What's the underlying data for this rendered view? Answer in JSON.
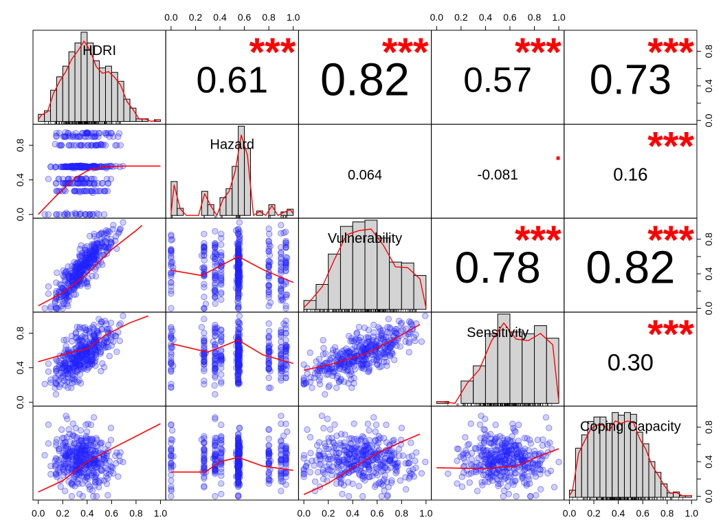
{
  "chart_data": {
    "type": "scatter-matrix",
    "variables": [
      "HDRI",
      "Hazard",
      "Vulnerability",
      "Sensitivity",
      "Coping Capacity"
    ],
    "axis_range": [
      0,
      1
    ],
    "tick_labels": [
      "0.0",
      "0.2",
      "0.4",
      "0.6",
      "0.8",
      "1.0"
    ],
    "tick_labels_hazard": [
      "0.0",
      "0.4",
      "0.8"
    ],
    "correlations": [
      {
        "row": 0,
        "col": 1,
        "value": "0.61",
        "stars": "***",
        "abs": 0.61
      },
      {
        "row": 0,
        "col": 2,
        "value": "0.82",
        "stars": "***",
        "abs": 0.82
      },
      {
        "row": 0,
        "col": 3,
        "value": "0.57",
        "stars": "***",
        "abs": 0.57
      },
      {
        "row": 0,
        "col": 4,
        "value": "0.73",
        "stars": "***",
        "abs": 0.73
      },
      {
        "row": 1,
        "col": 2,
        "value": "0.064",
        "stars": "",
        "abs": 0.064
      },
      {
        "row": 1,
        "col": 3,
        "value": "-0.081",
        "stars": ".",
        "abs": 0.081
      },
      {
        "row": 1,
        "col": 4,
        "value": "0.16",
        "stars": "***",
        "abs": 0.16
      },
      {
        "row": 2,
        "col": 3,
        "value": "0.78",
        "stars": "***",
        "abs": 0.78
      },
      {
        "row": 2,
        "col": 4,
        "value": "0.82",
        "stars": "***",
        "abs": 0.82
      },
      {
        "row": 3,
        "col": 4,
        "value": "0.30",
        "stars": "***",
        "abs": 0.3
      }
    ],
    "histograms": {
      "HDRI": {
        "bins": [
          0,
          0.05,
          0.1,
          0.15,
          0.2,
          0.25,
          0.3,
          0.35,
          0.4,
          0.45,
          0.5,
          0.55,
          0.6,
          0.65,
          0.7,
          0.75,
          0.8,
          0.85,
          0.9,
          0.95,
          1.0
        ],
        "counts": [
          0.08,
          0.12,
          0.35,
          0.5,
          0.62,
          0.78,
          0.88,
          1.0,
          0.88,
          0.68,
          0.6,
          0.62,
          0.55,
          0.45,
          0.25,
          0.15,
          0.03,
          0.03,
          0.0,
          0.02
        ]
      },
      "Hazard": {
        "bins": [
          0,
          0.05,
          0.1,
          0.15,
          0.2,
          0.25,
          0.3,
          0.35,
          0.4,
          0.45,
          0.5,
          0.55,
          0.6,
          0.65,
          0.7,
          0.75,
          0.8,
          0.85,
          0.9,
          0.95,
          1.0
        ],
        "counts": [
          0.38,
          0.08,
          0.0,
          0.0,
          0.0,
          0.27,
          0.12,
          0.0,
          0.2,
          0.3,
          0.55,
          1.0,
          0.75,
          0.0,
          0.05,
          0.0,
          0.12,
          0.0,
          0.04,
          0.07
        ]
      },
      "Vulnerability": {
        "bins": [
          0,
          0.1,
          0.2,
          0.3,
          0.4,
          0.5,
          0.6,
          0.7,
          0.8,
          0.9,
          1.0
        ],
        "counts": [
          0.1,
          0.28,
          0.62,
          0.93,
          0.98,
          1.0,
          0.8,
          0.53,
          0.52,
          0.38
        ]
      },
      "Sensitivity": {
        "bins": [
          0,
          0.1,
          0.2,
          0.3,
          0.4,
          0.5,
          0.6,
          0.7,
          0.8,
          0.9,
          1.0
        ],
        "counts": [
          0.02,
          0.0,
          0.25,
          0.42,
          0.78,
          1.0,
          0.8,
          0.78,
          0.87,
          0.73
        ]
      },
      "Coping Capacity": {
        "bins": [
          0,
          0.05,
          0.1,
          0.15,
          0.2,
          0.25,
          0.3,
          0.35,
          0.4,
          0.45,
          0.5,
          0.55,
          0.6,
          0.65,
          0.7,
          0.75,
          0.8,
          0.85,
          0.9,
          0.95,
          1.0
        ],
        "counts": [
          0.08,
          0.55,
          0.7,
          0.85,
          0.9,
          0.9,
          0.83,
          0.95,
          0.92,
          0.95,
          0.93,
          0.73,
          0.6,
          0.4,
          0.28,
          0.15,
          0.05,
          0.06,
          0.02,
          0.02
        ]
      }
    },
    "smooth_lines": {
      "1-0": [
        [
          0.0,
          0.0
        ],
        [
          0.15,
          0.22
        ],
        [
          0.3,
          0.42
        ],
        [
          0.42,
          0.52
        ],
        [
          0.55,
          0.55
        ],
        [
          0.7,
          0.56
        ],
        [
          1.0,
          0.56
        ]
      ],
      "2-0": [
        [
          0.0,
          0.03
        ],
        [
          0.2,
          0.18
        ],
        [
          0.4,
          0.4
        ],
        [
          0.6,
          0.68
        ],
        [
          0.8,
          0.9
        ],
        [
          0.85,
          0.96
        ]
      ],
      "2-1": [
        [
          0.0,
          0.44
        ],
        [
          0.25,
          0.38
        ],
        [
          0.55,
          0.6
        ],
        [
          0.75,
          0.45
        ],
        [
          1.0,
          0.3
        ]
      ],
      "3-0": [
        [
          0.0,
          0.47
        ],
        [
          0.25,
          0.57
        ],
        [
          0.4,
          0.62
        ],
        [
          0.55,
          0.78
        ],
        [
          0.75,
          0.92
        ],
        [
          0.9,
          1.0
        ]
      ],
      "3-1": [
        [
          0.0,
          0.68
        ],
        [
          0.3,
          0.58
        ],
        [
          0.55,
          0.72
        ],
        [
          0.75,
          0.55
        ],
        [
          1.0,
          0.45
        ]
      ],
      "3-2": [
        [
          0.0,
          0.37
        ],
        [
          0.25,
          0.45
        ],
        [
          0.5,
          0.56
        ],
        [
          0.75,
          0.74
        ],
        [
          0.95,
          0.9
        ]
      ],
      "4-0": [
        [
          0.0,
          0.05
        ],
        [
          0.2,
          0.18
        ],
        [
          0.4,
          0.4
        ],
        [
          0.6,
          0.55
        ],
        [
          1.0,
          0.84
        ]
      ],
      "4-1": [
        [
          0.0,
          0.28
        ],
        [
          0.28,
          0.28
        ],
        [
          0.4,
          0.4
        ],
        [
          0.55,
          0.45
        ],
        [
          0.75,
          0.35
        ],
        [
          1.0,
          0.3
        ]
      ],
      "4-2": [
        [
          0.0,
          0.02
        ],
        [
          0.2,
          0.15
        ],
        [
          0.4,
          0.33
        ],
        [
          0.6,
          0.5
        ],
        [
          0.8,
          0.63
        ],
        [
          0.95,
          0.72
        ]
      ],
      "4-3": [
        [
          0.0,
          0.33
        ],
        [
          0.4,
          0.32
        ],
        [
          0.65,
          0.35
        ],
        [
          0.85,
          0.47
        ],
        [
          1.0,
          0.55
        ]
      ]
    }
  }
}
